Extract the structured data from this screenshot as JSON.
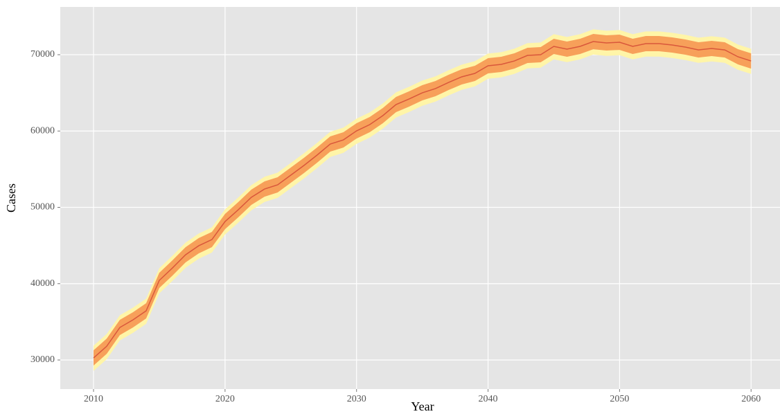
{
  "chart_data": {
    "type": "fan",
    "x_label": "Year",
    "y_label": "Cases",
    "x": [
      2010,
      2011,
      2012,
      2013,
      2014,
      2015,
      2016,
      2017,
      2018,
      2019,
      2020,
      2021,
      2022,
      2023,
      2024,
      2025,
      2026,
      2027,
      2028,
      2029,
      2030,
      2031,
      2032,
      2033,
      2034,
      2035,
      2036,
      2037,
      2038,
      2039,
      2040,
      2041,
      2042,
      2043,
      2044,
      2045,
      2046,
      2047,
      2048,
      2049,
      2050,
      2051,
      2052,
      2053,
      2054,
      2055,
      2056,
      2057,
      2058,
      2059,
      2060
    ],
    "median": {
      "color": "#d9573b",
      "values": [
        30270,
        31800,
        34260,
        35260,
        36440,
        40430,
        42060,
        43790,
        44970,
        45780,
        48140,
        49680,
        51320,
        52400,
        52950,
        54220,
        55490,
        56850,
        58300,
        58840,
        60020,
        60840,
        62020,
        63470,
        64200,
        65010,
        65560,
        66370,
        67100,
        67550,
        68550,
        68730,
        69180,
        69910,
        70000,
        71090,
        70730,
        71090,
        71720,
        71540,
        71630,
        71090,
        71450,
        71450,
        71270,
        71000,
        70630,
        70820,
        70630,
        69730,
        69180
      ]
    },
    "bands": [
      {
        "color": "#fff5a8",
        "lower": [
          28570,
          30100,
          32560,
          33560,
          34740,
          38730,
          40360,
          42090,
          43270,
          44080,
          46440,
          47980,
          49620,
          50700,
          51250,
          52520,
          53790,
          55150,
          56600,
          57140,
          58320,
          59140,
          60320,
          61770,
          62500,
          63310,
          63860,
          64670,
          65400,
          65850,
          66850,
          67030,
          67480,
          68210,
          68300,
          69390,
          69030,
          69390,
          70020,
          69840,
          69930,
          69390,
          69750,
          69750,
          69570,
          69300,
          68930,
          69120,
          68930,
          68030,
          67480
        ],
        "upper": [
          31870,
          33400,
          35860,
          36860,
          38040,
          42030,
          43660,
          45390,
          46570,
          47380,
          49740,
          51280,
          52920,
          54000,
          54550,
          55820,
          57090,
          58450,
          59900,
          60440,
          61620,
          62440,
          63620,
          65070,
          65800,
          66610,
          67160,
          67970,
          68700,
          69150,
          70150,
          70330,
          70780,
          71510,
          71600,
          72690,
          72330,
          72690,
          73320,
          73140,
          73230,
          72690,
          73050,
          73050,
          72870,
          72600,
          72230,
          72420,
          72230,
          71330,
          70780
        ]
      },
      {
        "color": "#f7a05a",
        "lower": [
          29270,
          30800,
          33260,
          34260,
          35440,
          39430,
          41060,
          42790,
          43970,
          44780,
          47140,
          48680,
          50320,
          51400,
          51950,
          53220,
          54490,
          55850,
          57300,
          57840,
          59020,
          59840,
          61020,
          62470,
          63200,
          64010,
          64560,
          65370,
          66100,
          66550,
          67550,
          67730,
          68180,
          68910,
          69000,
          70090,
          69730,
          70090,
          70720,
          70540,
          70630,
          70090,
          70450,
          70450,
          70270,
          70000,
          69630,
          69820,
          69630,
          68730,
          68180
        ],
        "upper": [
          31270,
          32800,
          35260,
          36260,
          37440,
          41430,
          43060,
          44790,
          45970,
          46780,
          49140,
          50680,
          52320,
          53400,
          53950,
          55220,
          56490,
          57850,
          59300,
          59840,
          61020,
          61840,
          63020,
          64470,
          65200,
          66010,
          66560,
          67370,
          68100,
          68550,
          69550,
          69730,
          70180,
          70910,
          71000,
          72090,
          71730,
          72090,
          72720,
          72540,
          72630,
          72090,
          72450,
          72450,
          72270,
          72000,
          71630,
          71820,
          71630,
          70730,
          70180
        ]
      }
    ],
    "xlim": [
      2007.47,
      2062.2
    ],
    "xticks": [
      2010,
      2020,
      2030,
      2040,
      2050,
      2060
    ],
    "ylim": [
      26190,
      76260
    ],
    "yticks": [
      30000,
      40000,
      50000,
      60000,
      70000
    ],
    "grid": true,
    "background": "#e5e5e5"
  }
}
